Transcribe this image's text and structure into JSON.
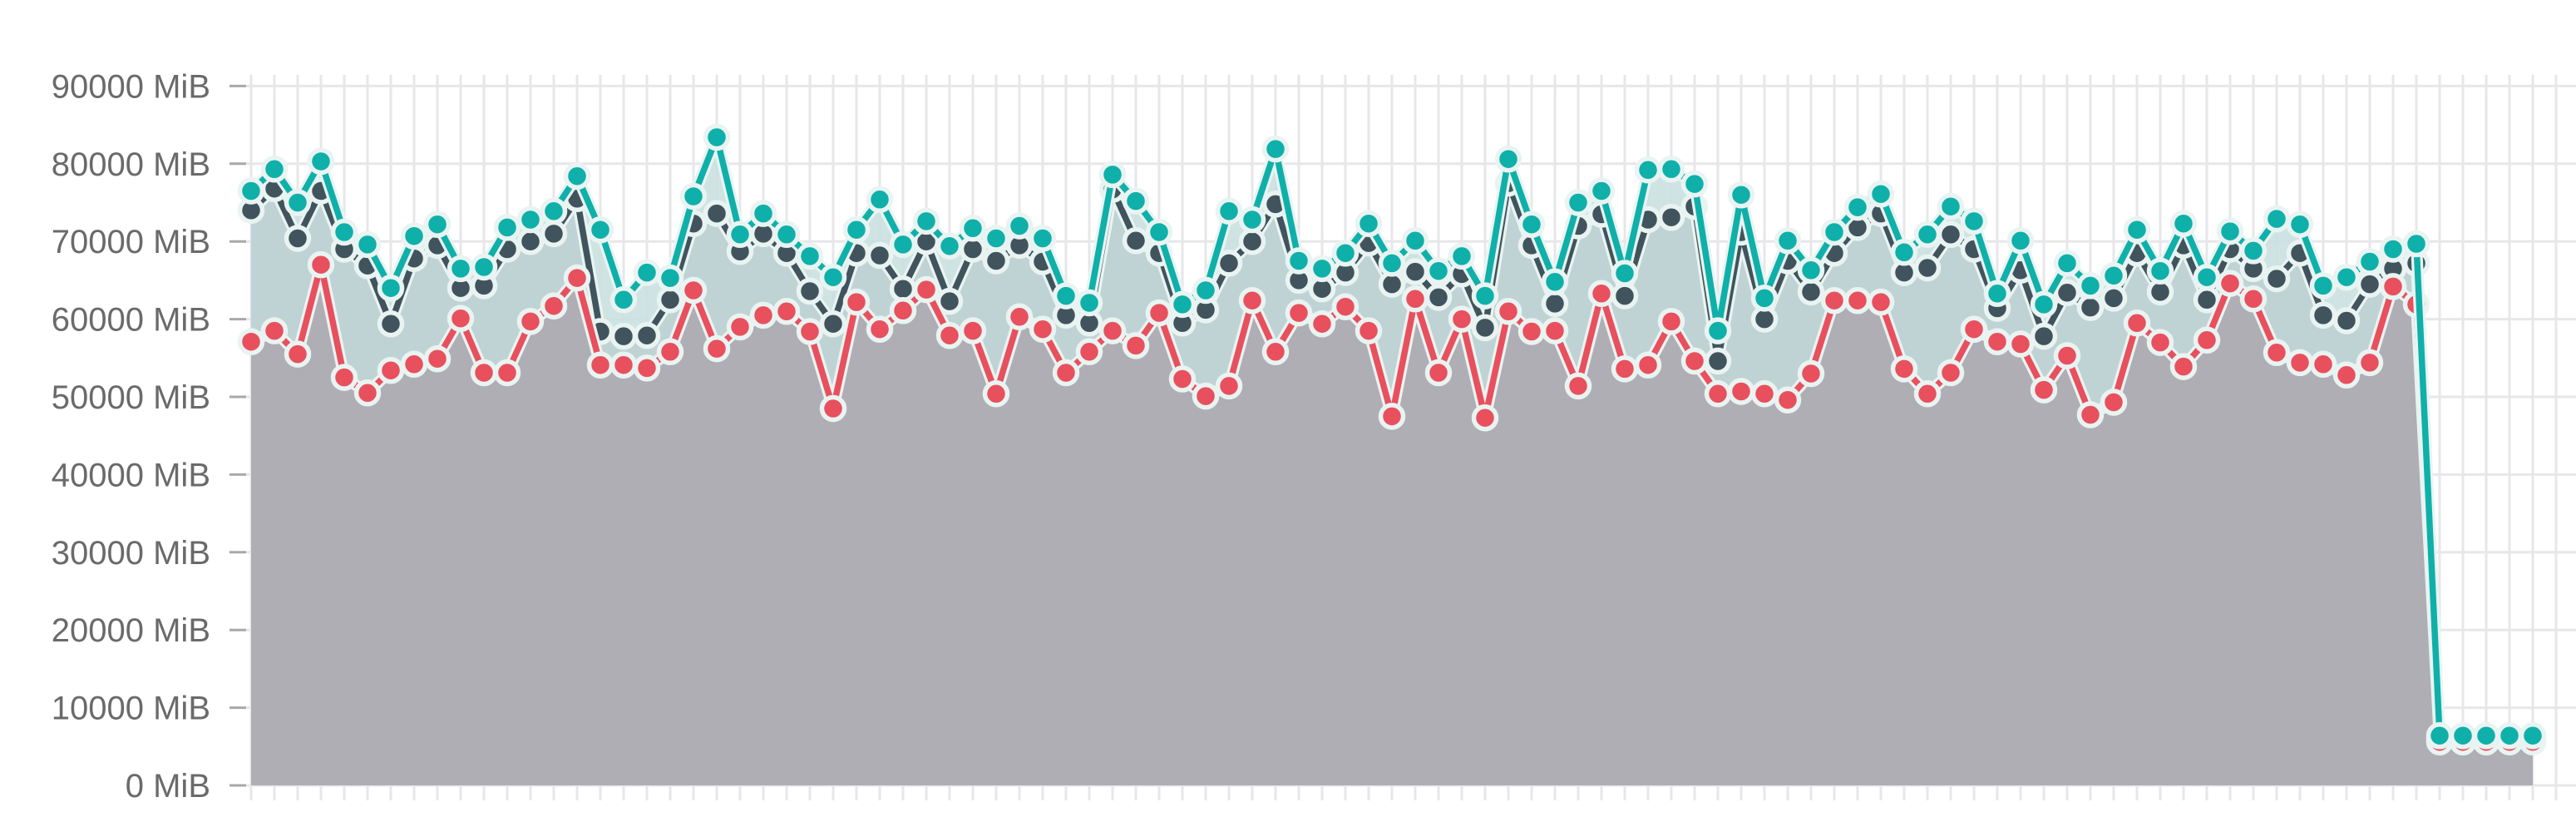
{
  "page": {
    "background": "#ffffff",
    "description": "memory usage line chart"
  },
  "chart_data": {
    "type": "line",
    "title": "",
    "xlabel": "",
    "ylabel": "",
    "unit": "MiB",
    "ylim": [
      0,
      90000
    ],
    "ytick_step": 10000,
    "ytick_labels": [
      "0 MiB",
      "10000 MiB",
      "20000 MiB",
      "30000 MiB",
      "40000 MiB",
      "50000 MiB",
      "60000 MiB",
      "70000 MiB",
      "80000 MiB",
      "90000 MiB"
    ],
    "x_tick_labels_visible": false,
    "grid": true,
    "legend_position": "none",
    "point_count": 99,
    "colors": {
      "grid_line": "#e7e7ea",
      "axis_tick": "#a8a8a8",
      "axis_label_text": "#6a6a6a",
      "marker_halo": "#e9f4f2",
      "teal_fill_band": "#cbe1e1",
      "dark_fill_tint": "rgba(64,83,92,0.10)",
      "gray_fill_under_red": "#aeacb2"
    },
    "series": [
      {
        "name": "teal",
        "color": "#0fb0a9",
        "fill": "band",
        "values": [
          76500,
          79300,
          75000,
          80300,
          71200,
          69600,
          64000,
          70700,
          72200,
          66500,
          66700,
          71800,
          72800,
          73900,
          78400,
          71500,
          62500,
          66000,
          65300,
          75800,
          83400,
          70900,
          73600,
          70900,
          68100,
          65400,
          71500,
          75400,
          69600,
          72600,
          69400,
          71700,
          70400,
          72000,
          70400,
          63000,
          62100,
          78600,
          75200,
          71200,
          61900,
          63700,
          73900,
          72800,
          81900,
          67500,
          66500,
          68500,
          72300,
          67200,
          70100,
          66200,
          68100,
          63000,
          80600,
          72200,
          64800,
          75000,
          76500,
          65900,
          79200,
          79300,
          77400,
          58500,
          76000,
          62700,
          70100,
          66300,
          71200,
          74400,
          76100,
          68600,
          70900,
          74500,
          72600,
          63300,
          70100,
          61900,
          67200,
          64300,
          65600,
          71500,
          66200,
          72300,
          65400,
          71300,
          68800,
          72900,
          72200,
          64300,
          65400,
          67400,
          69000,
          69700,
          6400,
          6400,
          6400,
          6400,
          6400
        ]
      },
      {
        "name": "dark-slate",
        "color": "#41545d",
        "fill": "tint",
        "values": [
          74000,
          76800,
          70400,
          76500,
          69000,
          66900,
          59400,
          67800,
          69500,
          64000,
          64300,
          69000,
          70000,
          71000,
          75500,
          58400,
          57800,
          57900,
          62500,
          72300,
          73600,
          68700,
          71000,
          68500,
          63600,
          59400,
          68500,
          68200,
          63900,
          70000,
          62300,
          69000,
          67500,
          69500,
          67400,
          60500,
          59500,
          76700,
          70100,
          68500,
          59500,
          61200,
          67200,
          70000,
          74800,
          65000,
          63900,
          66000,
          69800,
          64500,
          66100,
          62800,
          65800,
          58900,
          77500,
          69500,
          62000,
          72000,
          73500,
          63000,
          72800,
          73100,
          74500,
          54600,
          71200,
          60000,
          67500,
          63500,
          68500,
          71800,
          73600,
          66000,
          66600,
          70900,
          69000,
          61400,
          66300,
          57800,
          63400,
          61500,
          62700,
          68500,
          63500,
          69500,
          62500,
          69000,
          66500,
          65200,
          68500,
          60500,
          59800,
          64500,
          66500,
          67200,
          6100,
          6100,
          6100,
          6100,
          6100
        ]
      },
      {
        "name": "red",
        "color": "#e8505e",
        "fill": "gray",
        "values": [
          57100,
          58500,
          55500,
          67000,
          52500,
          50500,
          53400,
          54200,
          54900,
          60100,
          53100,
          53100,
          59700,
          61700,
          65300,
          54100,
          54100,
          53700,
          55800,
          63700,
          56200,
          59000,
          60500,
          61000,
          58400,
          48500,
          62200,
          58700,
          61100,
          63800,
          57900,
          58500,
          50400,
          60300,
          58700,
          53100,
          55800,
          58500,
          56600,
          60800,
          52300,
          50100,
          51400,
          62400,
          55800,
          60800,
          59400,
          61600,
          58500,
          47500,
          62600,
          53100,
          60000,
          47300,
          61000,
          58400,
          58500,
          51400,
          63300,
          53600,
          54100,
          59700,
          54600,
          50400,
          50700,
          50400,
          49600,
          53000,
          62400,
          62400,
          62200,
          53600,
          50400,
          53100,
          58700,
          57100,
          56800,
          50900,
          55300,
          47700,
          49300,
          59500,
          57000,
          53900,
          57300,
          64600,
          62600,
          55700,
          54400,
          54200,
          52800,
          54400,
          64200,
          61900,
          5600,
          5600,
          5600,
          5600,
          5600
        ]
      }
    ]
  }
}
